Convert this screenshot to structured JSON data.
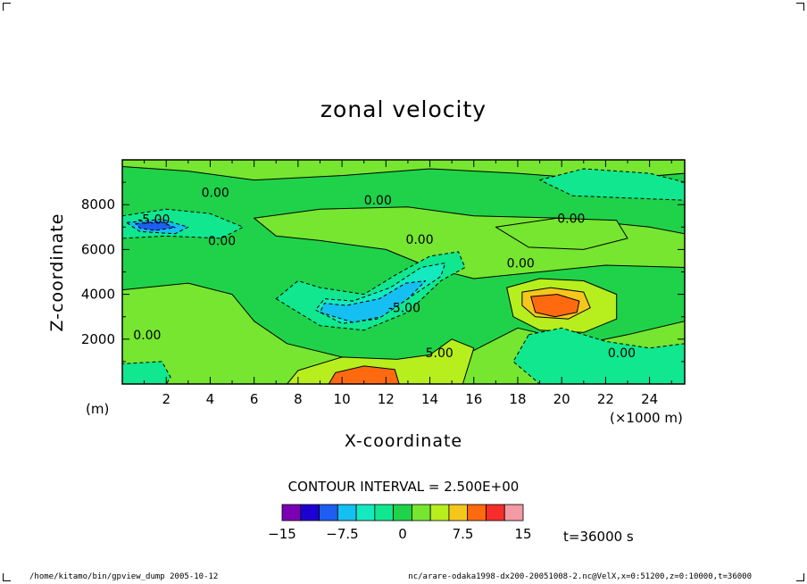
{
  "chart_data": {
    "type": "heatmap",
    "title": "zonal velocity",
    "xlabel": "X-coordinate",
    "ylabel": "Z-coordinate",
    "x_unit_left": "(m)",
    "x_unit_right": "(×1000 m)",
    "xlim": [
      0,
      25.6
    ],
    "ylim": [
      0,
      10000
    ],
    "x_ticks": [
      "2",
      "4",
      "6",
      "8",
      "10",
      "12",
      "14",
      "16",
      "18",
      "20",
      "22",
      "24"
    ],
    "y_ticks": [
      "2000",
      "4000",
      "6000",
      "8000"
    ],
    "contour_interval_text": "CONTOUR INTERVAL = 2.500E+00",
    "contour_interval": 2.5,
    "contour_labels": [
      {
        "text": "0.00",
        "x": 3.6,
        "y": 8350
      },
      {
        "text": "-5.00",
        "x": 0.7,
        "y": 7150
      },
      {
        "text": "0.00",
        "x": 3.9,
        "y": 6200
      },
      {
        "text": "0.00",
        "x": 11.0,
        "y": 8000
      },
      {
        "text": "0.00",
        "x": 12.9,
        "y": 6250
      },
      {
        "text": "0.00",
        "x": 19.8,
        "y": 7200
      },
      {
        "text": "0.00",
        "x": 17.5,
        "y": 5200
      },
      {
        "text": "-5.00",
        "x": 12.1,
        "y": 3200
      },
      {
        "text": "5.00",
        "x": 13.8,
        "y": 1200
      },
      {
        "text": "0.00",
        "x": 0.5,
        "y": 2000
      },
      {
        "text": "0.00",
        "x": 22.1,
        "y": 1200
      }
    ],
    "legend": {
      "ticks": [
        "−15",
        "−7.5",
        "0",
        "7.5",
        "15"
      ],
      "levels": [
        -15,
        -12.5,
        -10,
        -7.5,
        -5,
        -2.5,
        0,
        2.5,
        5,
        7.5,
        10,
        12.5,
        15
      ],
      "colors": [
        "#7b00b4",
        "#1f00d2",
        "#1d5ef0",
        "#15bff2",
        "#14e9c0",
        "#10e78e",
        "#1fd24a",
        "#76e630",
        "#b7ee1d",
        "#f5c71d",
        "#ff6a10",
        "#f62d2a",
        "#f39aa3"
      ]
    },
    "features": [
      {
        "label": "jet-core-positive",
        "x": 19.8,
        "y": 3500,
        "value": 11
      },
      {
        "label": "low-level-positive",
        "x": 11.0,
        "y": 300,
        "value": 10
      },
      {
        "label": "tilted-negative-band",
        "x": 11.5,
        "y": 3300,
        "value": -9
      },
      {
        "label": "upper-left-negative",
        "x": 1.5,
        "y": 7000,
        "value": -9
      }
    ],
    "time_label": "t=36000 s"
  },
  "footer": {
    "left": "/home/kitamo/bin/gpview_dump  2005-10-12",
    "right": "nc/arare-odaka1998-dx200-20051008-2.nc@VelX,x=0:51200,z=0:10000,t=36000"
  }
}
